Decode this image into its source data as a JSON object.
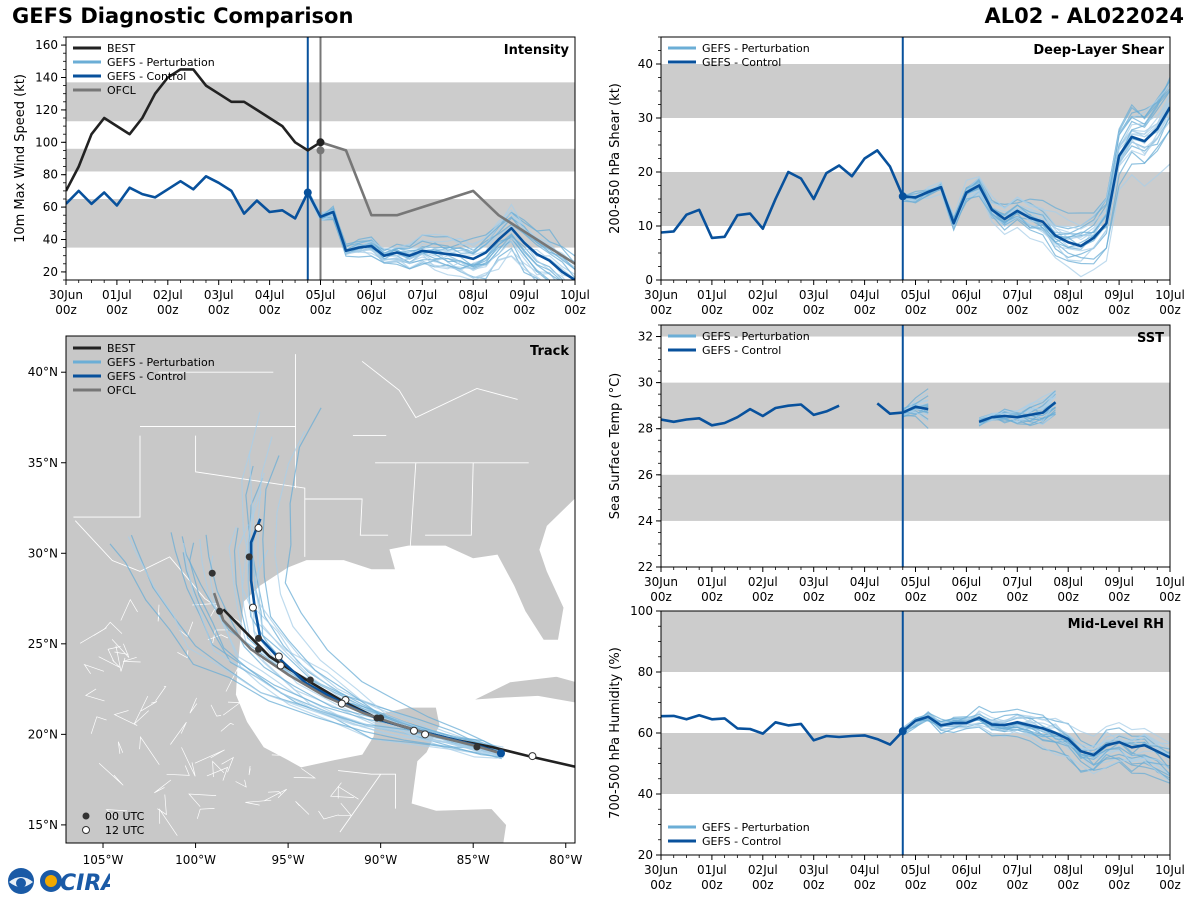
{
  "header": {
    "title": "GEFS Diagnostic Comparison",
    "storm_id": "AL02 - AL022024"
  },
  "colors": {
    "best": "#222222",
    "perturbation": "#6baed6",
    "perturbation_light": "#a9cfe8",
    "control": "#08519c",
    "ofcl": "#777777",
    "band": "#cccccc",
    "land": "#c8c8c8",
    "border": "#ffffff",
    "init_line": "#08519c"
  },
  "time_axis": {
    "tick_labels": [
      [
        "30Jun",
        "00z"
      ],
      [
        "01Jul",
        "00z"
      ],
      [
        "02Jul",
        "00z"
      ],
      [
        "03Jul",
        "00z"
      ],
      [
        "04Jul",
        "00z"
      ],
      [
        "05Jul",
        "00z"
      ],
      [
        "06Jul",
        "00z"
      ],
      [
        "07Jul",
        "00z"
      ],
      [
        "08Jul",
        "00z"
      ],
      [
        "09Jul",
        "00z"
      ],
      [
        "10Jul",
        "00z"
      ]
    ],
    "range_days": [
      0,
      10
    ],
    "init_day": 4.75,
    "ofcl_init_day": 5.0
  },
  "legend_labels": {
    "best": "BEST",
    "perturbation": "GEFS - Perturbation",
    "control": "GEFS - Control",
    "ofcl": "OFCL",
    "utc00": "00 UTC",
    "utc12": "12 UTC"
  },
  "chart_data": [
    {
      "id": "intensity",
      "type": "line",
      "title": "Intensity",
      "ylabel": "10m Max Wind Speed (kt)",
      "xlabel": "",
      "ylim": [
        15,
        165
      ],
      "yticks": [
        20,
        40,
        60,
        80,
        100,
        120,
        140,
        160
      ],
      "bands": [
        [
          35,
          65
        ],
        [
          82,
          96
        ],
        [
          113,
          137
        ]
      ],
      "series": [
        {
          "name": "BEST",
          "x": [
            0,
            0.25,
            0.5,
            0.75,
            1,
            1.25,
            1.5,
            1.75,
            2,
            2.25,
            2.5,
            2.75,
            3,
            3.25,
            3.5,
            3.75,
            4,
            4.25,
            4.5,
            4.75,
            5
          ],
          "y": [
            70,
            85,
            105,
            115,
            110,
            105,
            115,
            130,
            140,
            145,
            145,
            135,
            130,
            125,
            125,
            120,
            115,
            110,
            100,
            95,
            100
          ]
        },
        {
          "name": "GEFS - Control",
          "x": [
            0,
            0.25,
            0.5,
            0.75,
            1,
            1.25,
            1.5,
            1.75,
            2,
            2.25,
            2.5,
            2.75,
            3,
            3.25,
            3.5,
            3.75,
            4,
            4.25,
            4.5,
            4.75,
            5,
            5.25,
            5.5,
            5.75,
            6,
            6.25,
            6.5,
            6.75,
            7,
            7.25,
            7.5,
            7.75,
            8,
            8.25,
            8.5,
            8.75,
            9,
            9.25,
            9.5,
            9.75,
            10
          ],
          "y": [
            62,
            70,
            62,
            69,
            61,
            72,
            68,
            66,
            71,
            76,
            71,
            79,
            75,
            70,
            56,
            64,
            57,
            58,
            53,
            69,
            54,
            57,
            33,
            35,
            36,
            30,
            32,
            30,
            33,
            32,
            31,
            30,
            28,
            32,
            40,
            47,
            38,
            31,
            27,
            20,
            15
          ]
        },
        {
          "name": "OFCL",
          "x": [
            5,
            5.5,
            6,
            6.5,
            8,
            8.5,
            9,
            9.5,
            10
          ],
          "y": [
            100,
            95,
            55,
            55,
            70,
            55,
            45,
            35,
            25
          ]
        }
      ]
    },
    {
      "id": "shear",
      "type": "line",
      "title": "Deep-Layer Shear",
      "ylabel": "200-850 hPa Shear (kt)",
      "xlabel": "",
      "ylim": [
        0,
        45
      ],
      "yticks": [
        0,
        10,
        20,
        30,
        40
      ],
      "bands": [
        [
          10,
          20
        ],
        [
          30,
          40
        ]
      ],
      "series": [
        {
          "name": "GEFS - Control",
          "x": [
            0,
            0.25,
            0.5,
            0.75,
            1,
            1.25,
            1.5,
            1.75,
            2,
            2.25,
            2.5,
            2.75,
            3,
            3.25,
            3.5,
            3.75,
            4,
            4.25,
            4.5,
            4.75,
            5,
            5.25,
            5.5,
            5.75,
            6,
            6.25,
            6.5,
            6.75,
            7,
            7.25,
            7.5,
            7.75,
            8,
            8.25,
            8.5,
            8.75,
            9,
            9.25,
            9.5,
            9.75,
            10
          ],
          "y": [
            8.8,
            9,
            12.1,
            13,
            7.8,
            8,
            12,
            12.3,
            9.5,
            15,
            20,
            18.8,
            15,
            19.8,
            21.2,
            19.2,
            22.5,
            24,
            21,
            15.5,
            15.3,
            16.3,
            17.2,
            10.5,
            16.2,
            17.5,
            13,
            11.3,
            12.8,
            11.5,
            10.8,
            8.2,
            7,
            6.3,
            7.8,
            10.5,
            23,
            26.5,
            25.7,
            28,
            32
          ]
        }
      ]
    },
    {
      "id": "track",
      "type": "map",
      "title": "Track",
      "lon_range": [
        -107,
        -79.5
      ],
      "lat_range": [
        14,
        42
      ],
      "lon_ticks": [
        "105°W",
        "100°W",
        "95°W",
        "90°W",
        "85°W",
        "80°W"
      ],
      "lat_ticks": [
        "15°N",
        "20°N",
        "25°N",
        "30°N",
        "35°N",
        "40°N"
      ],
      "series": [
        {
          "name": "BEST",
          "lon": [
            -79,
            -82,
            -84,
            -86,
            -88,
            -90,
            -92,
            -94,
            -96,
            -98.5
          ],
          "lat": [
            18.1,
            18.8,
            19.3,
            19.7,
            20.2,
            20.8,
            21.8,
            23,
            24.3,
            26.9
          ]
        },
        {
          "name": "GEFS - Control",
          "lon": [
            -83.5,
            -84.5,
            -86,
            -88,
            -90,
            -92,
            -94,
            -95.5,
            -96.5,
            -96.8,
            -97,
            -97,
            -96.5
          ],
          "lat": [
            18.95,
            19.3,
            19.7,
            20.2,
            20.8,
            21.7,
            22.8,
            24.2,
            25.3,
            27,
            28.5,
            30.6,
            31.9
          ]
        },
        {
          "name": "OFCL",
          "lon": [
            -83.5,
            -85,
            -87,
            -89,
            -91,
            -93,
            -95,
            -97,
            -98.5,
            -99
          ],
          "lat": [
            18.95,
            19.4,
            19.9,
            20.5,
            21.2,
            22.1,
            23.3,
            24.7,
            26.3,
            27.8
          ]
        }
      ],
      "points_00utc": [
        [
          -84.8,
          19.3
        ],
        [
          -90,
          20.9
        ],
        [
          -93.8,
          23
        ],
        [
          -96.6,
          24.7
        ],
        [
          -96.6,
          25.3
        ],
        [
          -97.1,
          29.8
        ],
        [
          -99.1,
          28.9
        ],
        [
          -98.7,
          26.8
        ],
        [
          -83.5,
          19.0
        ],
        [
          -90.2,
          20.9
        ]
      ],
      "points_12utc": [
        [
          -81.8,
          18.8
        ],
        [
          -87.6,
          20
        ],
        [
          -88.2,
          20.2
        ],
        [
          -91.9,
          21.9
        ],
        [
          -92.1,
          21.7
        ],
        [
          -95.5,
          24.3
        ],
        [
          -95.4,
          23.8
        ],
        [
          -96.9,
          27
        ],
        [
          -96.6,
          31.4
        ]
      ]
    },
    {
      "id": "sst",
      "type": "line",
      "title": "SST",
      "ylabel": "Sea Surface Temp (°C)",
      "xlabel": "",
      "ylim": [
        22,
        32.5
      ],
      "yticks": [
        22,
        24,
        26,
        28,
        30,
        32
      ],
      "bands": [
        [
          24,
          26
        ],
        [
          28,
          30
        ],
        [
          32,
          34
        ]
      ],
      "series": [
        {
          "name": "GEFS - Control segment 1",
          "x": [
            0,
            0.25,
            0.5,
            0.75,
            1,
            1.25,
            1.5,
            1.75,
            2,
            2.25,
            2.5,
            2.75,
            3,
            3.25,
            3.5
          ],
          "y": [
            28.4,
            28.3,
            28.4,
            28.45,
            28.15,
            28.25,
            28.5,
            28.85,
            28.55,
            28.9,
            29.0,
            29.05,
            28.6,
            28.75,
            29.0
          ]
        },
        {
          "name": "GEFS - Control segment 2",
          "x": [
            4.25,
            4.5,
            4.75,
            5,
            5.25
          ],
          "y": [
            29.1,
            28.65,
            28.7,
            28.95,
            28.85
          ]
        },
        {
          "name": "GEFS - Control segment 3",
          "x": [
            6.25,
            6.5,
            6.75,
            7,
            7.25,
            7.5,
            7.75
          ],
          "y": [
            28.3,
            28.5,
            28.55,
            28.5,
            28.6,
            28.7,
            29.15
          ]
        }
      ]
    },
    {
      "id": "rh",
      "type": "line",
      "title": "Mid-Level RH",
      "ylabel": "700-500 hPa Humidity (%)",
      "xlabel": "",
      "ylim": [
        20,
        100
      ],
      "yticks": [
        20,
        40,
        60,
        80,
        100
      ],
      "bands": [
        [
          40,
          60
        ],
        [
          80,
          100
        ]
      ],
      "series": [
        {
          "name": "GEFS - Control",
          "x": [
            0,
            0.25,
            0.5,
            0.75,
            1,
            1.25,
            1.5,
            1.75,
            2,
            2.25,
            2.5,
            2.75,
            3,
            3.25,
            3.5,
            3.75,
            4,
            4.25,
            4.5,
            4.75,
            5,
            5.25,
            5.5,
            5.75,
            6,
            6.25,
            6.5,
            6.75,
            7,
            7.25,
            7.5,
            7.75,
            8,
            8.25,
            8.5,
            8.75,
            9,
            9.25,
            9.5,
            9.75,
            10
          ],
          "y": [
            65.5,
            65.6,
            64.5,
            65.8,
            64.5,
            64.8,
            61.5,
            61.3,
            59.8,
            63.5,
            62.5,
            63,
            57.6,
            59,
            58.7,
            59,
            59.2,
            58,
            56.2,
            60.6,
            64,
            65.3,
            62.5,
            63.2,
            63.3,
            65,
            62.8,
            62.6,
            63.5,
            62.5,
            61.5,
            60,
            58,
            54,
            52.8,
            56,
            57,
            55.3,
            56,
            54,
            52
          ]
        }
      ]
    }
  ]
}
